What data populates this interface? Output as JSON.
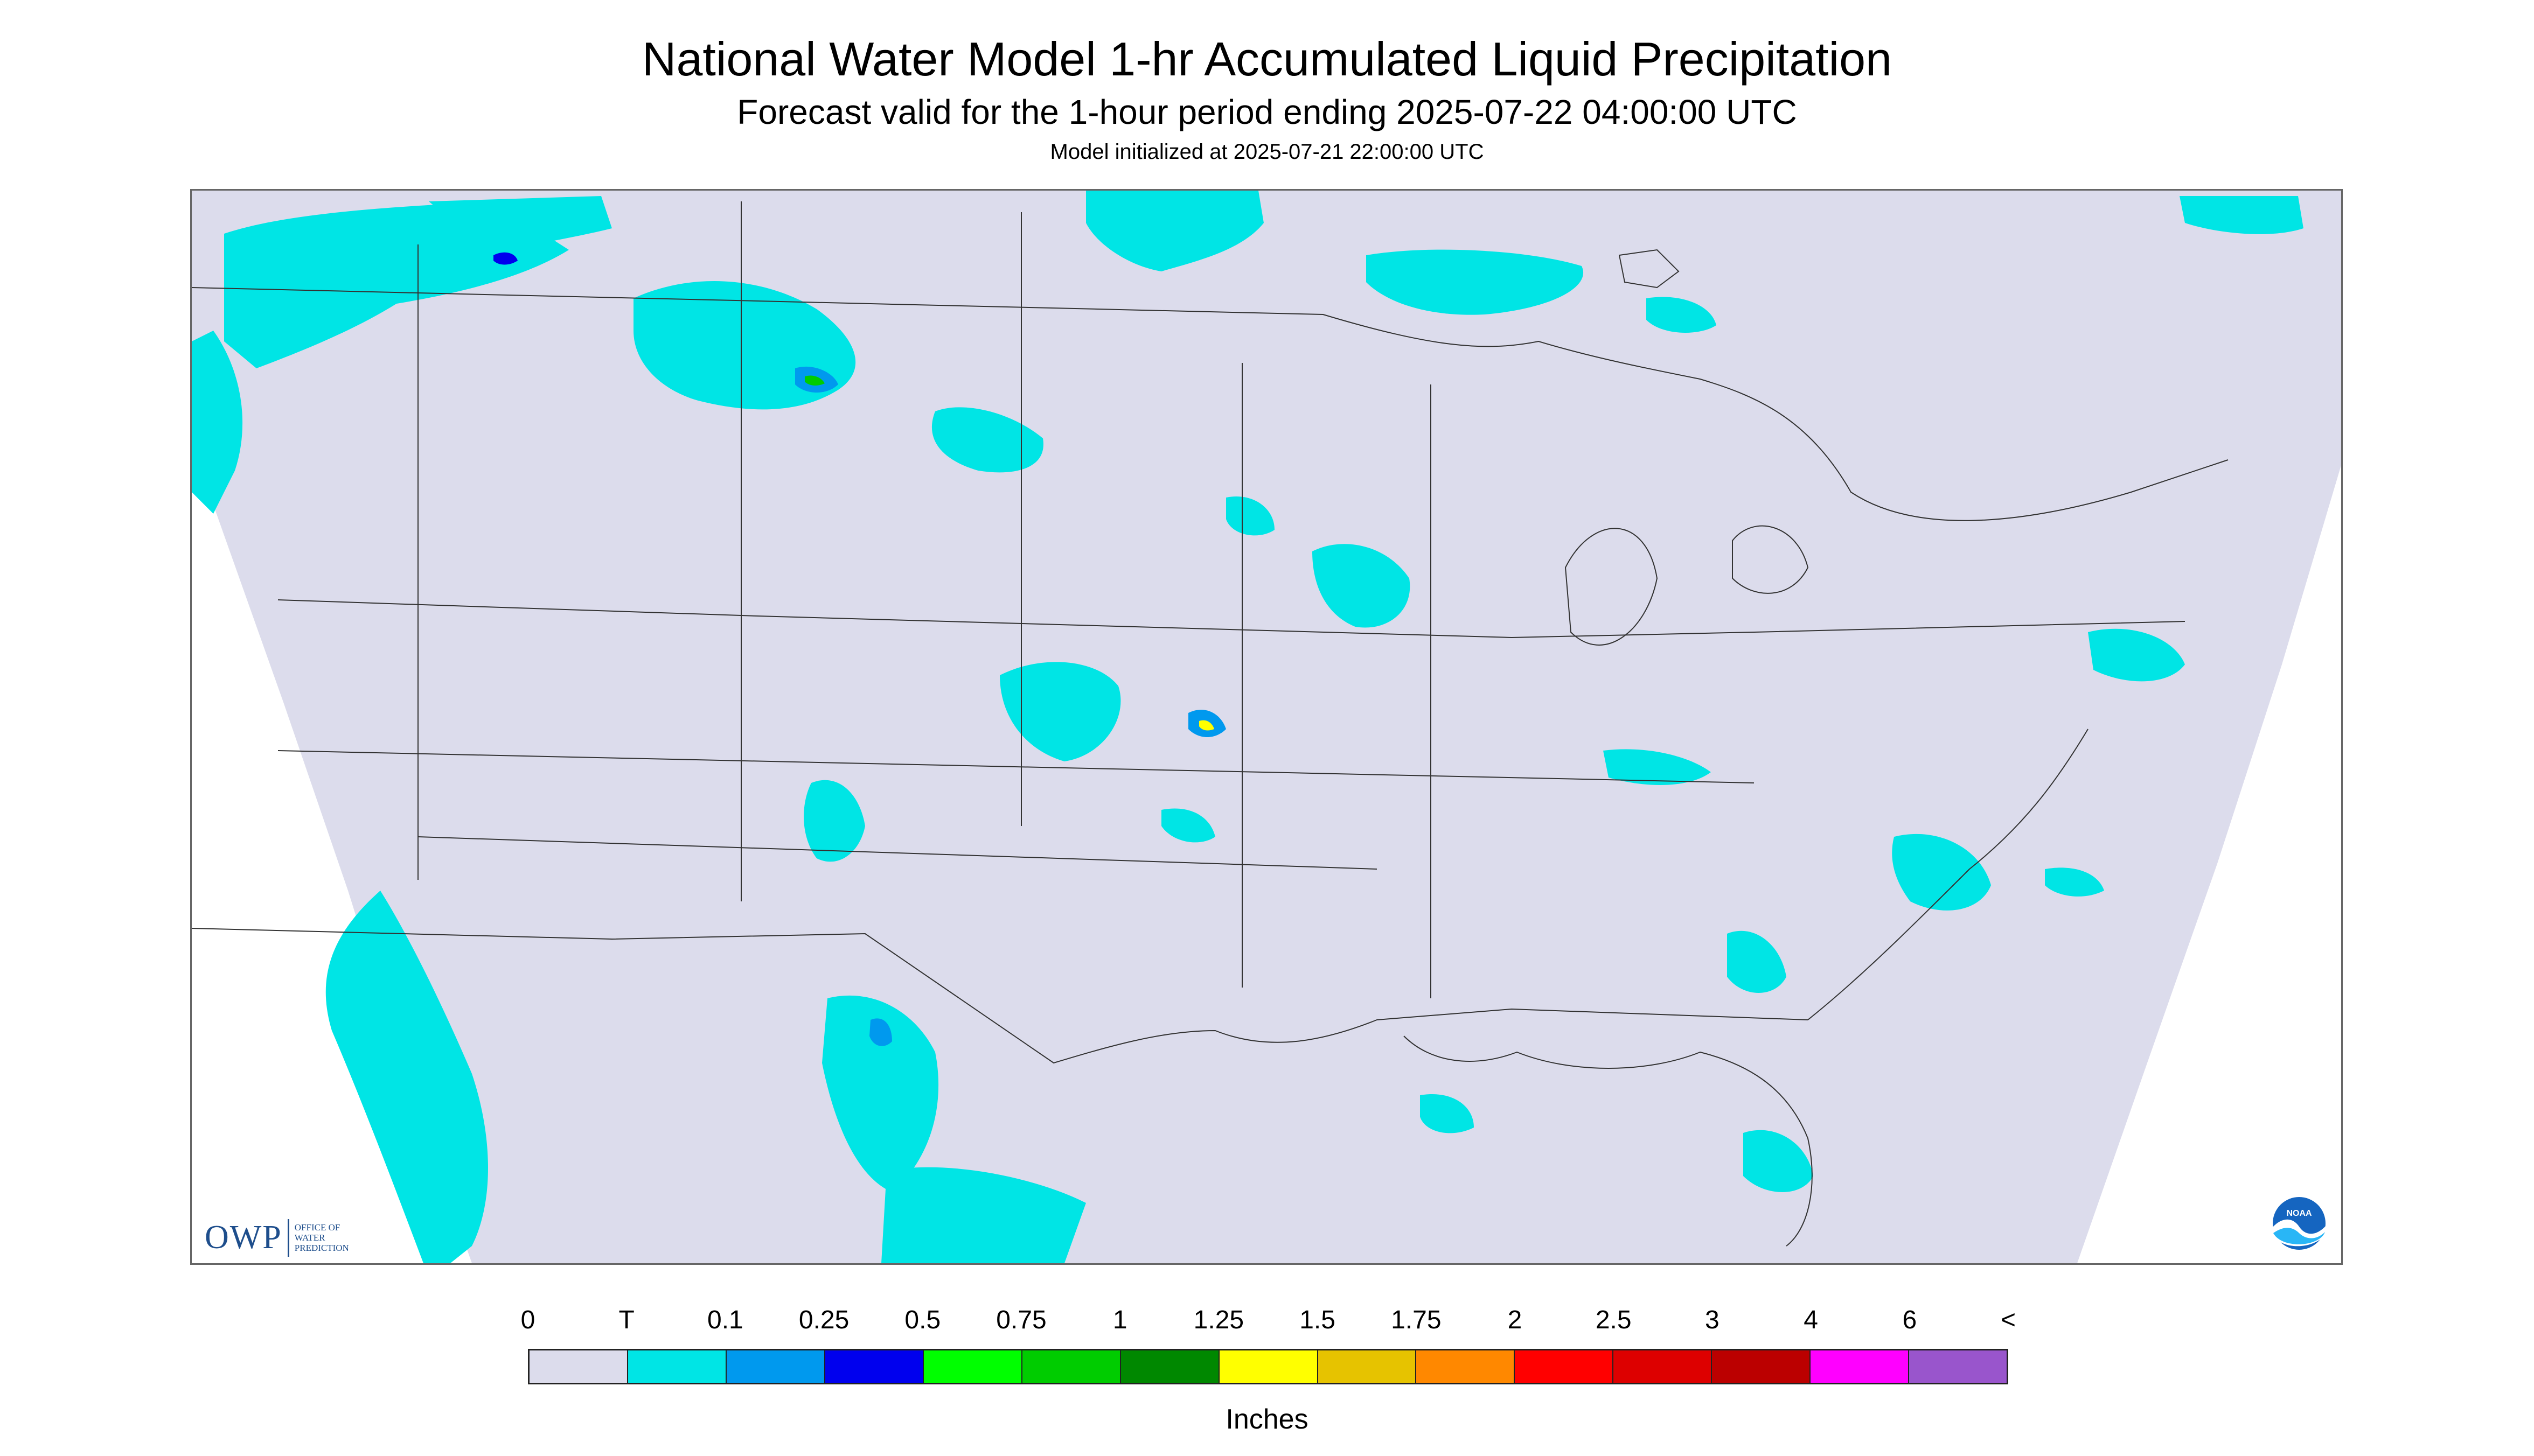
{
  "header": {
    "title": "National Water Model 1-hr Accumulated Liquid Precipitation",
    "subtitle": "Forecast valid for the 1-hour period ending 2025-07-22 04:00:00 UTC",
    "init": "Model initialized at 2025-07-21 22:00:00 UTC"
  },
  "colors": {
    "background": "#dcdcec",
    "trace": "#00e5e5",
    "boundaries": "#333333"
  },
  "logos": {
    "owp_mark": "OWP",
    "owp_text": [
      "OFFICE OF",
      "WATER",
      "PREDICTION"
    ],
    "noaa": "NOAA"
  },
  "legend": {
    "labels": [
      "0",
      "T",
      "0.1",
      "0.25",
      "0.5",
      "0.75",
      "1",
      "1.25",
      "1.5",
      "1.75",
      "2",
      "2.5",
      "3",
      "4",
      "6",
      "<"
    ],
    "colors": [
      "#dcdcec",
      "#00e5e5",
      "#0099ee",
      "#0000ee",
      "#00ff00",
      "#00cc00",
      "#008800",
      "#ffff00",
      "#e6c300",
      "#ff8800",
      "#ff0000",
      "#dd0000",
      "#bb0000",
      "#ff00ff",
      "#9955cc"
    ],
    "units": "Inches"
  }
}
